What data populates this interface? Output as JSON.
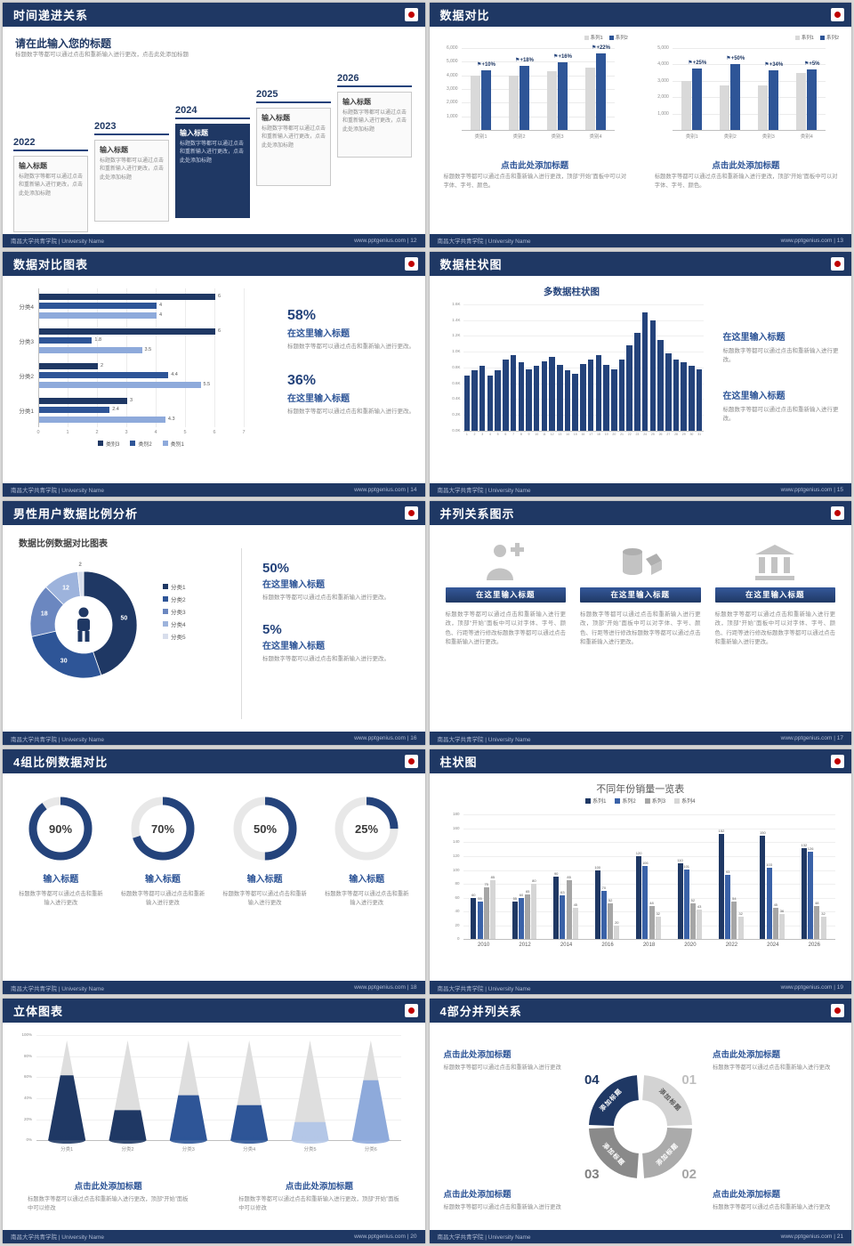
{
  "ui": {
    "footer_left": "南昌大学共青学院 | University Name",
    "site": "www.pptgenius.com",
    "sep": " | "
  },
  "slides": {
    "s12": {
      "header": "时间递进关系",
      "page_no": "12",
      "heading": "请在此输入您的标题",
      "subtext": "标题数字等都可以通过点击和重新输入进行更改，点击此处添加标题",
      "highlight_index": 2,
      "items": [
        {
          "year": "2022",
          "title": "输入标题",
          "body": "标题数字等都可以通过点击和重新输入进行更改，点击此处添加标题"
        },
        {
          "year": "2023",
          "title": "输入标题",
          "body": "标题数字等都可以通过点击和重新输入进行更改，点击此处添加标题"
        },
        {
          "year": "2024",
          "title": "输入标题",
          "body": "标题数字等都可以通过点击和重新输入进行更改，点击此处添加标题"
        },
        {
          "year": "2025",
          "title": "输入标题",
          "body": "标题数字等都可以通过点击和重新输入进行更改，点击此处添加标题"
        },
        {
          "year": "2026",
          "title": "输入标题",
          "body": "标题数字等都可以通过点击和重新输入进行更改，点击此处添加标题"
        }
      ]
    },
    "s13": {
      "header": "数据对比",
      "page_no": "13",
      "charts": [
        {
          "type": "bar",
          "legend": [
            "系列1",
            "系列2"
          ],
          "yticks": [
            "6,000",
            "5,000",
            "4,000",
            "3,000",
            "2,000",
            "1,000"
          ],
          "ymax": 6000,
          "categories": [
            "类别1",
            "类别2",
            "类别3",
            "类别4"
          ],
          "series": [
            {
              "name": "系列1",
              "color": "#D9D9D9",
              "values": [
                4000,
                4000,
                4300,
                4600
              ]
            },
            {
              "name": "系列2",
              "color": "#2E5597",
              "values": [
                4400,
                4720,
                4990,
                5610
              ]
            }
          ],
          "annotations": [
            "+10%",
            "+18%",
            "+16%",
            "+22%"
          ],
          "caption": "点击此处添加标题",
          "body": "标题数字等都可以通过点击和重新输入进行更改，顶部“开始”面板中可以对字体、字号、颜色。"
        },
        {
          "type": "bar",
          "legend": [
            "系列1",
            "系列2"
          ],
          "yticks": [
            "5,000",
            "4,000",
            "3,000",
            "2,000",
            "1,000"
          ],
          "ymax": 5000,
          "categories": [
            "类别1",
            "类别2",
            "类别3",
            "类别4"
          ],
          "series": [
            {
              "name": "系列1",
              "color": "#D9D9D9",
              "values": [
                3000,
                2700,
                2700,
                3500
              ]
            },
            {
              "name": "系列2",
              "color": "#2E5597",
              "values": [
                3750,
                4050,
                3620,
                3680
              ]
            }
          ],
          "annotations": [
            "+25%",
            "+50%",
            "+34%",
            "+5%"
          ],
          "caption": "点击此处添加标题",
          "body": "标题数字等都可以通过点击和重新输入进行更改，顶部“开始”面板中可以对字体、字号、颜色。"
        }
      ]
    },
    "s14": {
      "header": "数据对比图表",
      "page_no": "14",
      "chart": {
        "type": "bar",
        "orientation": "horizontal",
        "groups": [
          {
            "label": "分类4",
            "values": [
              6,
              4,
              4
            ]
          },
          {
            "label": "分类3",
            "values": [
              6,
              1.8,
              3.5
            ]
          },
          {
            "label": "分类2",
            "values": [
              2,
              4.4,
              5.5
            ]
          },
          {
            "label": "分类1",
            "values": [
              3,
              2.4,
              4.3
            ]
          }
        ],
        "series_colors": [
          "#1F3864",
          "#2E5597",
          "#8EAADB"
        ],
        "legend": [
          "类别3",
          "类别2",
          "类别1"
        ],
        "xticks": [
          0,
          1,
          2,
          3,
          4,
          5,
          6,
          7
        ],
        "xmax": 7
      },
      "stats": [
        {
          "pct": "58%",
          "title": "在这里输入标题",
          "body": "标题数字等都可以通过点击和重新输入进行更改。"
        },
        {
          "pct": "36%",
          "title": "在这里输入标题",
          "body": "标题数字等都可以通过点击和重新输入进行更改。"
        }
      ]
    },
    "s15": {
      "header": "数据柱状图",
      "page_no": "15",
      "chart": {
        "type": "bar",
        "title": "多数据柱状图",
        "yticks": [
          "1.6K",
          "1.4K",
          "1.2K",
          "1.0K",
          "0.8K",
          "0.6K",
          "0.4K",
          "0.2K",
          "0.0K"
        ],
        "ymax": 1600,
        "xlabels": [
          "1",
          "2",
          "3",
          "4",
          "5",
          "6",
          "7",
          "8",
          "9",
          "10",
          "11",
          "12",
          "13",
          "14",
          "15",
          "16",
          "17",
          "18",
          "19",
          "20",
          "21",
          "22",
          "23",
          "24",
          "25",
          "26",
          "27",
          "28",
          "29",
          "30",
          "31"
        ],
        "values": [
          700,
          760,
          820,
          700,
          760,
          900,
          950,
          870,
          770,
          820,
          880,
          930,
          830,
          760,
          720,
          840,
          900,
          960,
          830,
          780,
          900,
          1080,
          1240,
          1500,
          1390,
          1150,
          980,
          900,
          860,
          820,
          770
        ]
      },
      "blocks": [
        {
          "title": "在这里输入标题",
          "body": "标题数字等都可以通过点击和重新输入进行更改。"
        },
        {
          "title": "在这里输入标题",
          "body": "标题数字等都可以通过点击和重新输入进行更改。"
        }
      ]
    },
    "s16": {
      "header": "男性用户数据比例分析",
      "page_no": "16",
      "chart": {
        "type": "pie",
        "title": "数据比例数据对比图表",
        "labels": [
          "分类1",
          "分类2",
          "分类3",
          "分类4",
          "分类5"
        ],
        "values": [
          50,
          30,
          18,
          12,
          2
        ],
        "colors": [
          "#1F3864",
          "#2E5597",
          "#6B87C0",
          "#9DB3DC",
          "#D8DEEC"
        ]
      },
      "stats": [
        {
          "pct": "50%",
          "title": "在这里输入标题",
          "body": "标题数字等都可以通过点击和重新输入进行更改。"
        },
        {
          "pct": "5%",
          "title": "在这里输入标题",
          "body": "标题数字等都可以通过点击和重新输入进行更改。"
        }
      ]
    },
    "s17": {
      "header": "并列关系图示",
      "page_no": "17",
      "cards": [
        {
          "icon": "medical-person-icon",
          "title": "在这里输入标题",
          "body": "标题数字等都可以通过点击和重新输入进行更改，顶部“开始”面板中可以对字体、字号、颜色、行距等进行修改标题数字等都可以通过点击和重新输入进行更改。"
        },
        {
          "icon": "3d-shapes-icon",
          "title": "在这里输入标题",
          "body": "标题数字等都可以通过点击和重新输入进行更改，顶部“开始”面板中可以对字体、字号、颜色、行距等进行修改标题数字等都可以通过点击和重新输入进行更改。"
        },
        {
          "icon": "building-icon",
          "title": "在这里输入标题",
          "body": "标题数字等都可以通过点击和重新输入进行更改，顶部“开始”面板中可以对字体、字号、颜色、行距等进行修改标题数字等都可以通过点击和重新输入进行更改。"
        }
      ]
    },
    "s18": {
      "header": "4组比例数据对比",
      "page_no": "18",
      "rings": [
        {
          "pct": 90,
          "label": "90%",
          "title": "输入标题",
          "body": "标题数字等都可以通过点击和重新输入进行更改"
        },
        {
          "pct": 70,
          "label": "70%",
          "title": "输入标题",
          "body": "标题数字等都可以通过点击和重新输入进行更改"
        },
        {
          "pct": 50,
          "label": "50%",
          "title": "输入标题",
          "body": "标题数字等都可以通过点击和重新输入进行更改"
        },
        {
          "pct": 25,
          "label": "25%",
          "title": "输入标题",
          "body": "标题数字等都可以通过点击和重新输入进行更改"
        }
      ]
    },
    "s19": {
      "header": "柱状图",
      "page_no": "19",
      "chart": {
        "type": "bar",
        "title": "不同年份销量一览表",
        "categories": [
          "2010",
          "2012",
          "2014",
          "2016",
          "2018",
          "2020",
          "2022",
          "2024",
          "2026"
        ],
        "series": [
          {
            "name": "系列1",
            "color": "#1F3864",
            "values": [
              60,
              55,
              90,
              100,
              120,
              110,
              152,
              150,
              132
            ]
          },
          {
            "name": "系列2",
            "color": "#3A62A8",
            "values": [
              55,
              60,
              63,
              70,
              106,
              101,
              93,
              103,
              126
            ]
          },
          {
            "name": "系列3",
            "color": "#A6A6A6",
            "values": [
              75,
              65,
              85,
              52,
              48,
              52,
              54,
              45,
              48
            ]
          },
          {
            "name": "系列4",
            "color": "#D6D6D6",
            "values": [
              85,
              80,
              45,
              20,
              32,
              43,
              32,
              36,
              32
            ]
          }
        ],
        "ymax": 180,
        "yticks": [
          180,
          160,
          140,
          120,
          100,
          80,
          60,
          40,
          20,
          0
        ]
      }
    },
    "s20": {
      "header": "立体图表",
      "page_no": "20",
      "chart": {
        "type": "bar",
        "style": "cone-3d",
        "yticks": [
          "100%",
          "80%",
          "60%",
          "40%",
          "20%",
          "0%"
        ],
        "categories": [
          "分类1",
          "分类2",
          "分类3",
          "分类4",
          "分类5",
          "分类6"
        ],
        "values": [
          65,
          30,
          45,
          35,
          18,
          60
        ],
        "colors": [
          "#1F3864",
          "#1F3864",
          "#2E5597",
          "#2E5597",
          "#B4C7E7",
          "#8EAADB"
        ]
      },
      "blocks": [
        {
          "title": "点击此处添加标题",
          "body": "标题数字等都可以通过点击和重新输入进行更改，顶部“开始”面板中可以修改"
        },
        {
          "title": "点击此处添加标题",
          "body": "标题数字等都可以通过点击和重新输入进行更改，顶部“开始”面板中可以修改"
        }
      ]
    },
    "s21": {
      "header": "4部分并列关系",
      "page_no": "21",
      "segments": [
        {
          "num": "01",
          "label": "添加标题",
          "color": "#D3D3D3",
          "num_color": "#BFBFBF"
        },
        {
          "num": "02",
          "label": "添加标题",
          "color": "#ABABAB",
          "num_color": "#A6A6A6"
        },
        {
          "num": "03",
          "label": "添加标题",
          "color": "#8A8A8A",
          "num_color": "#7F7F7F"
        },
        {
          "num": "04",
          "label": "添加标题",
          "color": "#1F3864",
          "num_color": "#1F3864"
        }
      ],
      "blocks": [
        {
          "title": "点击此处添加标题",
          "body": "标题数字等都可以通过点击和重新输入进行更改"
        },
        {
          "title": "点击此处添加标题",
          "body": "标题数字等都可以通过点击和重新输入进行更改"
        },
        {
          "title": "点击此处添加标题",
          "body": "标题数字等都可以通过点击和重新输入进行更改"
        },
        {
          "title": "点击此处添加标题",
          "body": "标题数字等都可以通过点击和重新输入进行更改"
        }
      ]
    }
  }
}
